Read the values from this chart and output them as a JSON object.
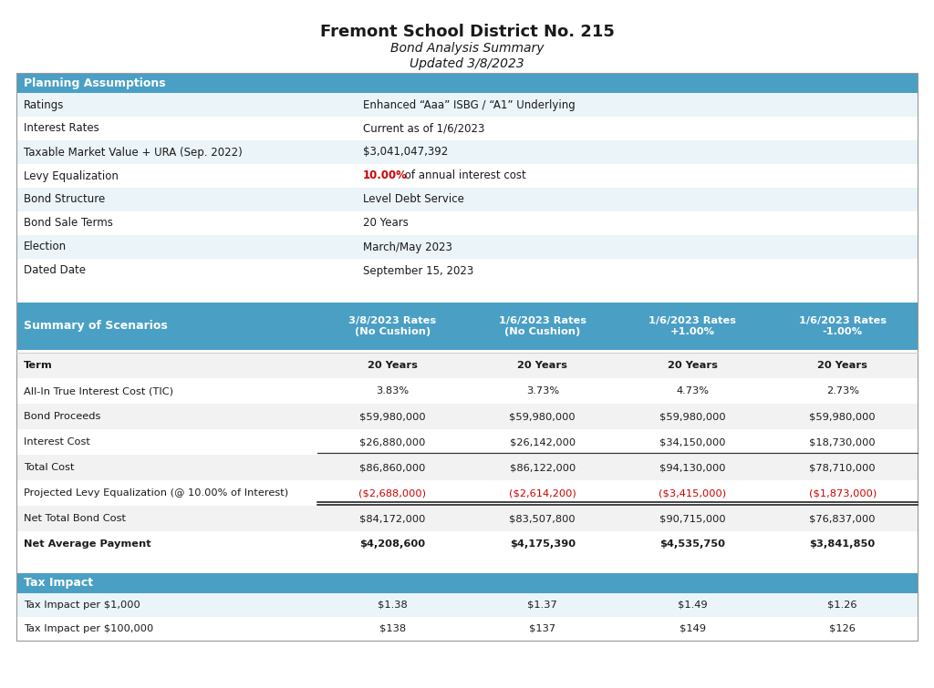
{
  "title": "Fremont School District No. 215",
  "subtitle1": "Bond Analysis Summary",
  "subtitle2": "Updated 3/8/2023",
  "header_color": "#4a9fc4",
  "header_text_color": "#ffffff",
  "body_bg": "#ffffff",
  "red_color": "#cc0000",
  "planning_label": "Planning Assumptions",
  "planning_rows": [
    [
      "Ratings",
      "Enhanced “Aaa” ISBG / “A1” Underlying"
    ],
    [
      "Interest Rates",
      "Current as of 1/6/2023"
    ],
    [
      "Taxable Market Value + URA (Sep. 2022)",
      "$3,041,047,392"
    ],
    [
      "Levy Equalization",
      "10.00% of annual interest cost"
    ],
    [
      "Bond Structure",
      "Level Debt Service"
    ],
    [
      "Bond Sale Terms",
      "20 Years"
    ],
    [
      "Election",
      "March/May 2023"
    ],
    [
      "Dated Date",
      "September 15, 2023"
    ]
  ],
  "scenarios_label": "Summary of Scenarios",
  "col_headers": [
    "3/8/2023 Rates\n(No Cushion)",
    "1/6/2023 Rates\n(No Cushion)",
    "1/6/2023 Rates\n+1.00%",
    "1/6/2023 Rates\n-1.00%"
  ],
  "scenario_rows": [
    [
      "Term",
      "20 Years",
      "20 Years",
      "20 Years",
      "20 Years",
      false,
      true
    ],
    [
      "All-In True Interest Cost (TIC)",
      "3.83%",
      "3.73%",
      "4.73%",
      "2.73%",
      false,
      false
    ],
    [
      "Bond Proceeds",
      "$59,980,000",
      "$59,980,000",
      "$59,980,000",
      "$59,980,000",
      false,
      false
    ],
    [
      "Interest Cost",
      "$26,880,000",
      "$26,142,000",
      "$34,150,000",
      "$18,730,000",
      false,
      false
    ],
    [
      "Total Cost",
      "$86,860,000",
      "$86,122,000",
      "$94,130,000",
      "$78,710,000",
      false,
      false
    ],
    [
      "Projected Levy Equalization (@ 10.00% of Interest)",
      "($2,688,000)",
      "($2,614,200)",
      "($3,415,000)",
      "($1,873,000)",
      true,
      false
    ],
    [
      "Net Total Bond Cost",
      "$84,172,000",
      "$83,507,800",
      "$90,715,000",
      "$76,837,000",
      false,
      false
    ],
    [
      "Net Average Payment",
      "$4,208,600",
      "$4,175,390",
      "$4,535,750",
      "$3,841,850",
      false,
      true
    ]
  ],
  "tax_label": "Tax Impact",
  "tax_rows": [
    [
      "Tax Impact per $1,000",
      "$1.38",
      "$1.37",
      "$1.49",
      "$1.26"
    ],
    [
      "Tax Impact per $100,000",
      "$138",
      "$137",
      "$149",
      "$126"
    ]
  ]
}
